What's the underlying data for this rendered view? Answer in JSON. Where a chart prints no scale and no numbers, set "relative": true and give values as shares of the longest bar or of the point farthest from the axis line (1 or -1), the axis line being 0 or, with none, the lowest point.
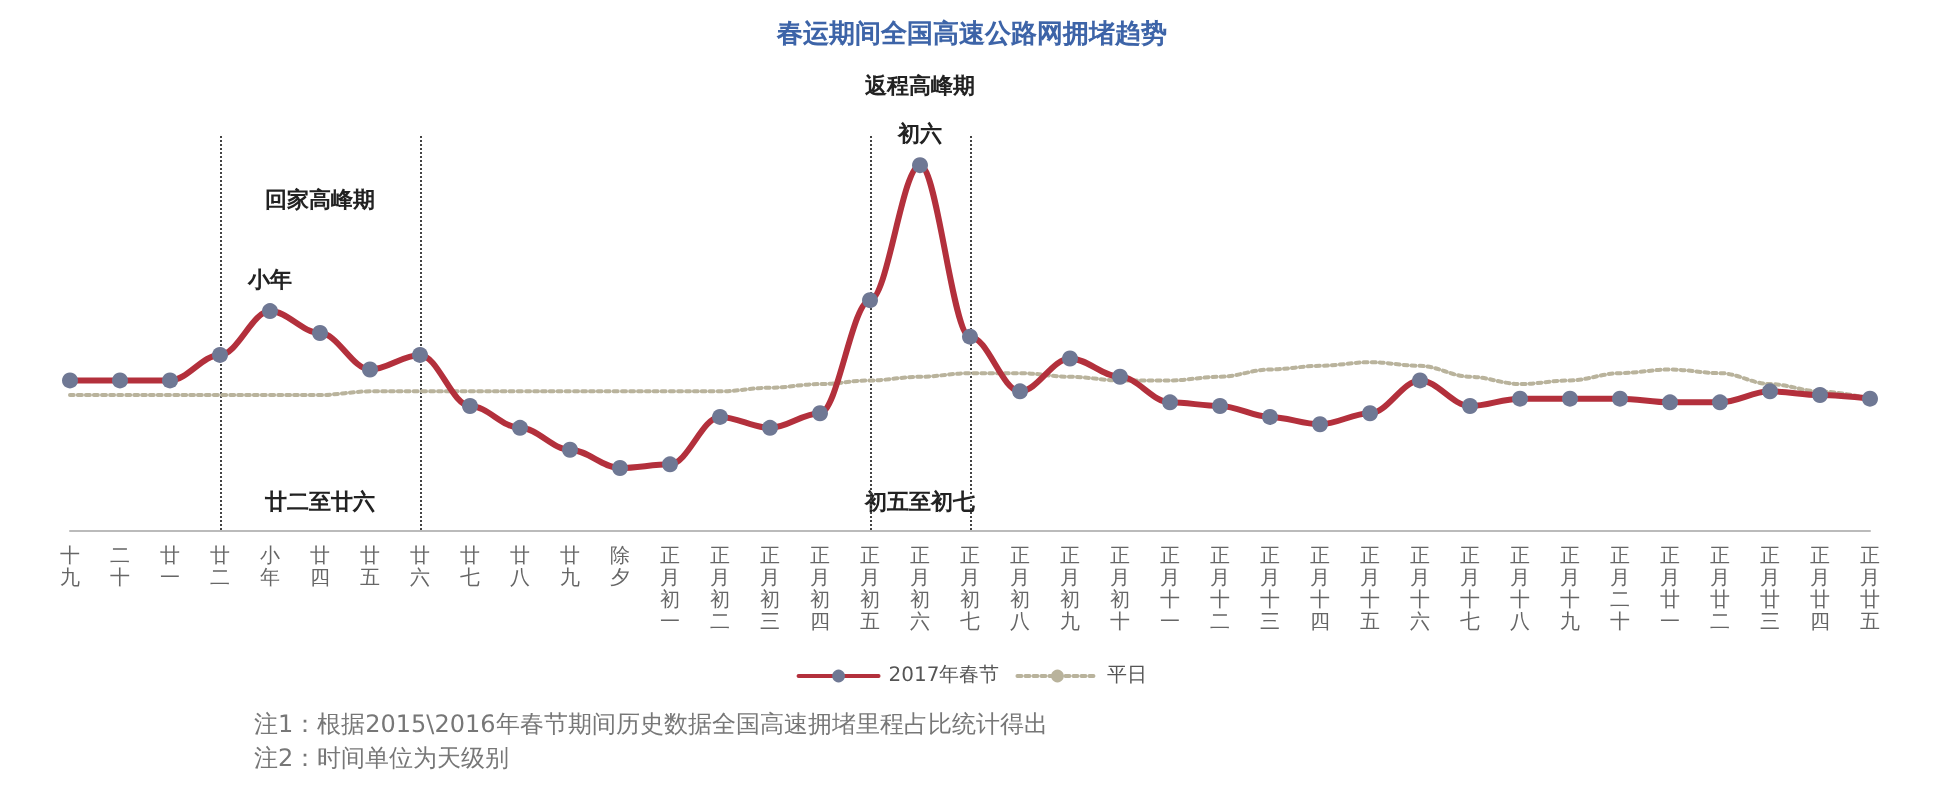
{
  "chart_data": {
    "type": "line",
    "title": "春运期间全国高速公路网拥堵趋势",
    "relative": true,
    "grid": false,
    "legend": "bottom",
    "categories": [
      "十九",
      "二十",
      "廿一",
      "廿二",
      "小年",
      "廿四",
      "廿五",
      "廿六",
      "廿七",
      "廿八",
      "廿九",
      "除夕",
      "正月初一",
      "正月初二",
      "正月初三",
      "正月初四",
      "正月初五",
      "正月初六",
      "正月初七",
      "正月初八",
      "正月初九",
      "正月初十",
      "正月十一",
      "正月十二",
      "正月十三",
      "正月十四",
      "正月十五",
      "正月十六",
      "正月十七",
      "正月十八",
      "正月十九",
      "正月二十",
      "正月廿一",
      "正月廿二",
      "正月廿三",
      "正月廿四",
      "正月廿五"
    ],
    "series": [
      {
        "name": "2017年春节",
        "color": "#b3303c",
        "marker": "circle",
        "line_style": "solid",
        "values": [
          0.41,
          0.41,
          0.41,
          0.48,
          0.6,
          0.54,
          0.44,
          0.48,
          0.34,
          0.28,
          0.22,
          0.17,
          0.18,
          0.31,
          0.28,
          0.32,
          0.63,
          1,
          0.53,
          0.38,
          0.47,
          0.42,
          0.35,
          0.34,
          0.31,
          0.29,
          0.32,
          0.41,
          0.34,
          0.36,
          0.36,
          0.36,
          0.35,
          0.35,
          0.38,
          0.37,
          0.36
        ]
      },
      {
        "name": "平日",
        "color": "#b9b39c",
        "marker": "none",
        "line_style": "dotted",
        "values": [
          0.37,
          0.37,
          0.37,
          0.37,
          0.37,
          0.37,
          0.38,
          0.38,
          0.38,
          0.38,
          0.38,
          0.38,
          0.38,
          0.38,
          0.39,
          0.4,
          0.41,
          0.42,
          0.43,
          0.43,
          0.42,
          0.41,
          0.41,
          0.42,
          0.44,
          0.45,
          0.46,
          0.45,
          0.42,
          0.4,
          0.41,
          0.43,
          0.44,
          0.43,
          0.4,
          0.38,
          0.36
        ]
      }
    ],
    "ref_lines": [
      {
        "axis": "x",
        "value": "廿二",
        "color": "#444444",
        "line_style": "dotted"
      },
      {
        "axis": "x",
        "value": "廿六",
        "color": "#444444",
        "line_style": "dotted"
      },
      {
        "axis": "x",
        "value": "正月初五",
        "color": "#444444",
        "line_style": "dotted"
      },
      {
        "axis": "x",
        "value": "正月初七",
        "color": "#444444",
        "line_style": "dotted"
      }
    ],
    "annotations": [
      {
        "text": "小年",
        "x": "小年",
        "y": 0.6
      },
      {
        "text": "初六",
        "x": "正月初六",
        "y": 1
      },
      "回家高峰期",
      "廿二至廿六",
      "返程高峰期",
      "初五至初七",
      "注1：根据2015\\2016年春节期间历史数据全国高速拥堵里程占比统计得出",
      "注2：时间单位为天级别"
    ]
  }
}
